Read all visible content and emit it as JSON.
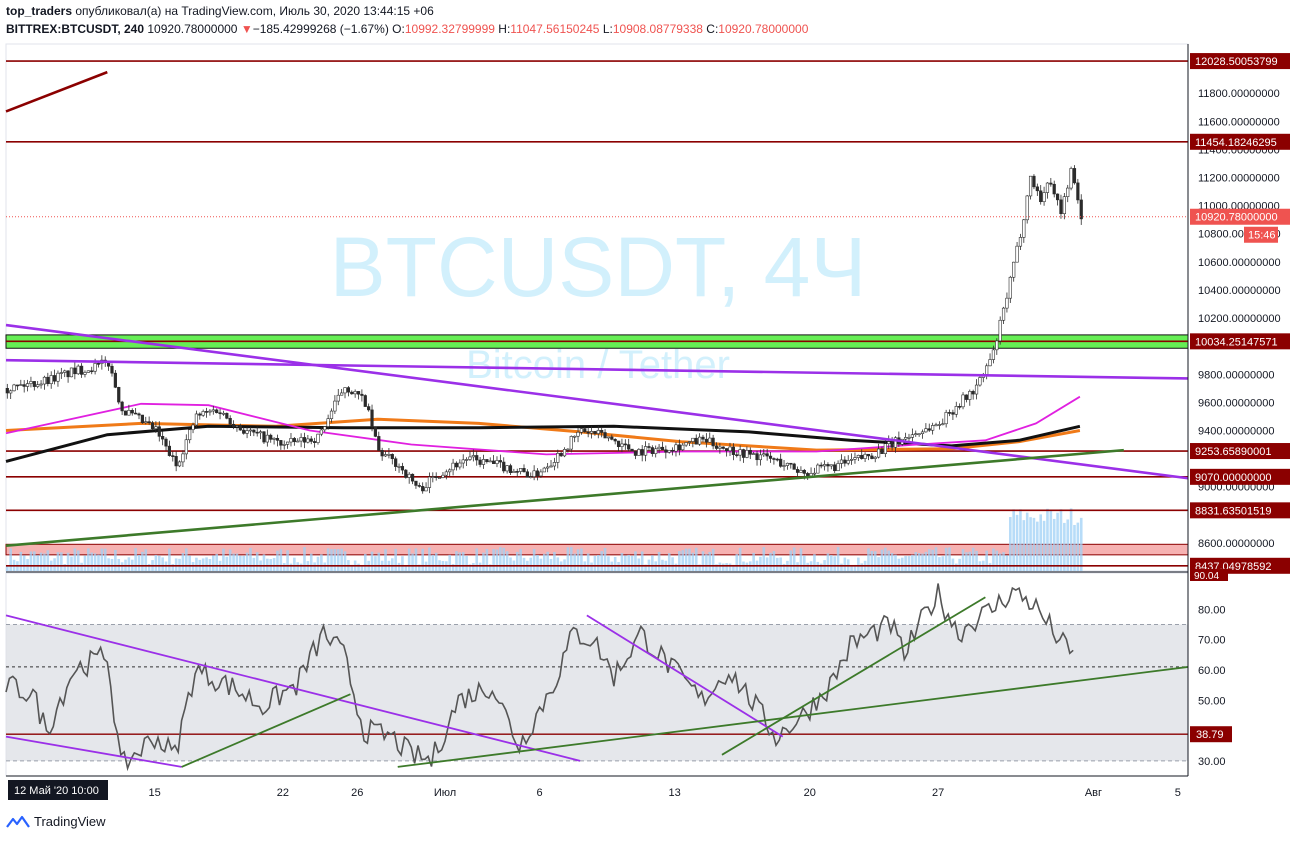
{
  "header": {
    "author": "top_traders",
    "published_text": "опубликовал(а) на TradingView.com, Июль 30, 2020 13:44:15 +06",
    "symbol": "BITTREX:BTCUSDT, 240",
    "price": "10920.78000000",
    "change_arrow": "▼",
    "change": "−185.42999268 (−1.67%)",
    "o_label": "O:",
    "o_value": "10992.32799999",
    "h_label": "H:",
    "h_value": "11047.56150245",
    "l_label": "L:",
    "l_value": "10908.08779338",
    "c_label": "C:",
    "c_value": "10920.78000000"
  },
  "watermark": {
    "title": "BTCUSDT, 4Ч",
    "subtitle": "Bitcoin / Tether"
  },
  "footer": {
    "brand": "TradingView"
  },
  "colors": {
    "level_line": "#8b0000",
    "green_zone": "#66ee55",
    "red_zone": "#f4a4a4",
    "purple": "#9b30e8",
    "trend_green": "#3d7a2a",
    "orange": "#f07a18",
    "magenta": "#e020e0",
    "candle": "#2b2b2b",
    "volume": "#9fd0f5",
    "rsi_line": "#555555",
    "rsi_band": "#dfe1e6"
  },
  "chart_data": [
    {
      "type": "line",
      "title": "BITTREX:BTCUSDT, 240",
      "ylim": [
        8400,
        12150
      ],
      "y_ticks": [
        "11800.00000000",
        "11600.00000000",
        "11400.00000000",
        "11200.00000000",
        "11000.00000000",
        "10800.00000000",
        "10600.00000000",
        "10400.00000000",
        "10200.00000000",
        "9800.00000000",
        "9600.00000000",
        "9400.00000000",
        "9000.00000000",
        "8600.00000000"
      ],
      "x_tick_labels": [
        "15",
        "22",
        "26",
        "Июл",
        "6",
        "13",
        "20",
        "27",
        "Авг",
        "5"
      ],
      "x_tick_bars": [
        44,
        82,
        104,
        130,
        158,
        198,
        238,
        276,
        322,
        347
      ],
      "total_bars": 350,
      "cursor_label": "12 Май '20   10:00",
      "price_labels": [
        {
          "value": 12028.50053799,
          "text": "12028.50053799",
          "style": "level"
        },
        {
          "value": 11454.18246295,
          "text": "11454.18246295",
          "style": "level"
        },
        {
          "value": 10920.78,
          "text": "10920.78000000",
          "style": "current"
        },
        {
          "value": 10034.25147571,
          "text": "10034.25147571",
          "style": "level"
        },
        {
          "value": 9253.65890001,
          "text": "9253.65890001",
          "style": "level"
        },
        {
          "value": 9070.0,
          "text": "9070.00000000",
          "style": "level"
        },
        {
          "value": 8831.63501519,
          "text": "8831.63501519",
          "style": "level"
        },
        {
          "value": 8437.04978592,
          "text": "8437.04978592",
          "style": "level"
        }
      ],
      "countdown": "15:46",
      "horizontal_levels": [
        12028.5,
        11454.18,
        10034.25,
        9253.66,
        9070.0,
        8831.64,
        8437.05
      ],
      "green_zone": [
        9985,
        10080
      ],
      "red_zone": [
        8515,
        8590
      ],
      "trendlines": [
        {
          "color": "purple",
          "from": [
            0,
            10150
          ],
          "to": [
            350,
            9060
          ]
        },
        {
          "color": "purple",
          "from": [
            0,
            9900
          ],
          "to": [
            350,
            9770
          ]
        },
        {
          "color": "trend_green",
          "from": [
            0,
            8580
          ],
          "to": [
            331,
            9260
          ]
        },
        {
          "color": "level_line",
          "from": [
            0,
            11670
          ],
          "to": [
            30,
            11950
          ]
        }
      ],
      "price_path": [
        [
          0,
          9700
        ],
        [
          10,
          9750
        ],
        [
          20,
          9820
        ],
        [
          30,
          9880
        ],
        [
          34,
          9550
        ],
        [
          44,
          9400
        ],
        [
          50,
          9150
        ],
        [
          56,
          9500
        ],
        [
          62,
          9550
        ],
        [
          70,
          9400
        ],
        [
          82,
          9300
        ],
        [
          92,
          9350
        ],
        [
          100,
          9720
        ],
        [
          106,
          9600
        ],
        [
          110,
          9250
        ],
        [
          116,
          9150
        ],
        [
          122,
          8980
        ],
        [
          128,
          9100
        ],
        [
          136,
          9200
        ],
        [
          146,
          9150
        ],
        [
          156,
          9080
        ],
        [
          162,
          9200
        ],
        [
          170,
          9400
        ],
        [
          178,
          9350
        ],
        [
          186,
          9250
        ],
        [
          196,
          9280
        ],
        [
          206,
          9330
        ],
        [
          216,
          9250
        ],
        [
          226,
          9200
        ],
        [
          236,
          9100
        ],
        [
          246,
          9150
        ],
        [
          256,
          9230
        ],
        [
          266,
          9350
        ],
        [
          276,
          9450
        ],
        [
          282,
          9600
        ],
        [
          286,
          9680
        ],
        [
          288,
          9750
        ],
        [
          292,
          9950
        ],
        [
          296,
          10350
        ],
        [
          300,
          10800
        ],
        [
          303,
          11200
        ],
        [
          306,
          11050
        ],
        [
          309,
          11180
        ],
        [
          312,
          10950
        ],
        [
          315,
          11250
        ],
        [
          318,
          10920
        ]
      ],
      "moving_averages": [
        {
          "name": "orange",
          "points": [
            [
              0,
              9400
            ],
            [
              40,
              9450
            ],
            [
              80,
              9430
            ],
            [
              110,
              9480
            ],
            [
              140,
              9450
            ],
            [
              170,
              9390
            ],
            [
              200,
              9320
            ],
            [
              240,
              9260
            ],
            [
              280,
              9270
            ],
            [
              300,
              9320
            ],
            [
              318,
              9400
            ]
          ]
        },
        {
          "name": "black",
          "points": [
            [
              0,
              9180
            ],
            [
              30,
              9370
            ],
            [
              60,
              9430
            ],
            [
              100,
              9420
            ],
            [
              140,
              9420
            ],
            [
              180,
              9430
            ],
            [
              220,
              9390
            ],
            [
              250,
              9330
            ],
            [
              280,
              9290
            ],
            [
              300,
              9330
            ],
            [
              318,
              9430
            ]
          ]
        },
        {
          "name": "magenta",
          "points": [
            [
              0,
              9380
            ],
            [
              40,
              9590
            ],
            [
              60,
              9580
            ],
            [
              90,
              9400
            ],
            [
              120,
              9300
            ],
            [
              160,
              9230
            ],
            [
              200,
              9250
            ],
            [
              240,
              9250
            ],
            [
              270,
              9300
            ],
            [
              290,
              9330
            ],
            [
              305,
              9450
            ],
            [
              318,
              9640
            ]
          ]
        }
      ]
    },
    {
      "type": "line",
      "title": "RSI",
      "ylim": [
        25,
        92
      ],
      "y_ticks": [
        "80.00",
        "70.00",
        "60.00",
        "50.00",
        "30.00"
      ],
      "value_label": "90.04",
      "level_label": "38.79",
      "band": [
        30,
        75
      ],
      "levels": [
        61,
        38.79
      ],
      "rsi_path": [
        [
          0,
          55
        ],
        [
          8,
          52
        ],
        [
          12,
          40
        ],
        [
          20,
          60
        ],
        [
          30,
          65
        ],
        [
          34,
          28
        ],
        [
          44,
          38
        ],
        [
          50,
          32
        ],
        [
          56,
          60
        ],
        [
          66,
          55
        ],
        [
          76,
          48
        ],
        [
          86,
          55
        ],
        [
          94,
          72
        ],
        [
          100,
          65
        ],
        [
          106,
          40
        ],
        [
          114,
          38
        ],
        [
          120,
          32
        ],
        [
          126,
          30
        ],
        [
          134,
          50
        ],
        [
          144,
          55
        ],
        [
          152,
          35
        ],
        [
          162,
          55
        ],
        [
          168,
          72
        ],
        [
          174,
          70
        ],
        [
          180,
          58
        ],
        [
          188,
          72
        ],
        [
          196,
          62
        ],
        [
          206,
          50
        ],
        [
          214,
          60
        ],
        [
          222,
          48
        ],
        [
          228,
          38
        ],
        [
          236,
          45
        ],
        [
          244,
          55
        ],
        [
          250,
          68
        ],
        [
          256,
          72
        ],
        [
          262,
          75
        ],
        [
          266,
          65
        ],
        [
          272,
          78
        ],
        [
          276,
          85
        ],
        [
          282,
          72
        ],
        [
          286,
          76
        ],
        [
          292,
          80
        ],
        [
          298,
          86
        ],
        [
          304,
          82
        ],
        [
          308,
          76
        ],
        [
          312,
          70
        ],
        [
          316,
          64
        ]
      ],
      "trendlines": [
        {
          "color": "purple",
          "from": [
            0,
            78
          ],
          "to": [
            170,
            30
          ]
        },
        {
          "color": "purple",
          "from": [
            0,
            38
          ],
          "to": [
            52,
            28
          ]
        },
        {
          "color": "purple",
          "from": [
            172,
            78
          ],
          "to": [
            230,
            38
          ]
        },
        {
          "color": "trend_green",
          "from": [
            52,
            28
          ],
          "to": [
            102,
            52
          ]
        },
        {
          "color": "trend_green",
          "from": [
            116,
            28
          ],
          "to": [
            350,
            61
          ]
        },
        {
          "color": "trend_green",
          "from": [
            212,
            32
          ],
          "to": [
            290,
            84
          ]
        }
      ]
    }
  ]
}
